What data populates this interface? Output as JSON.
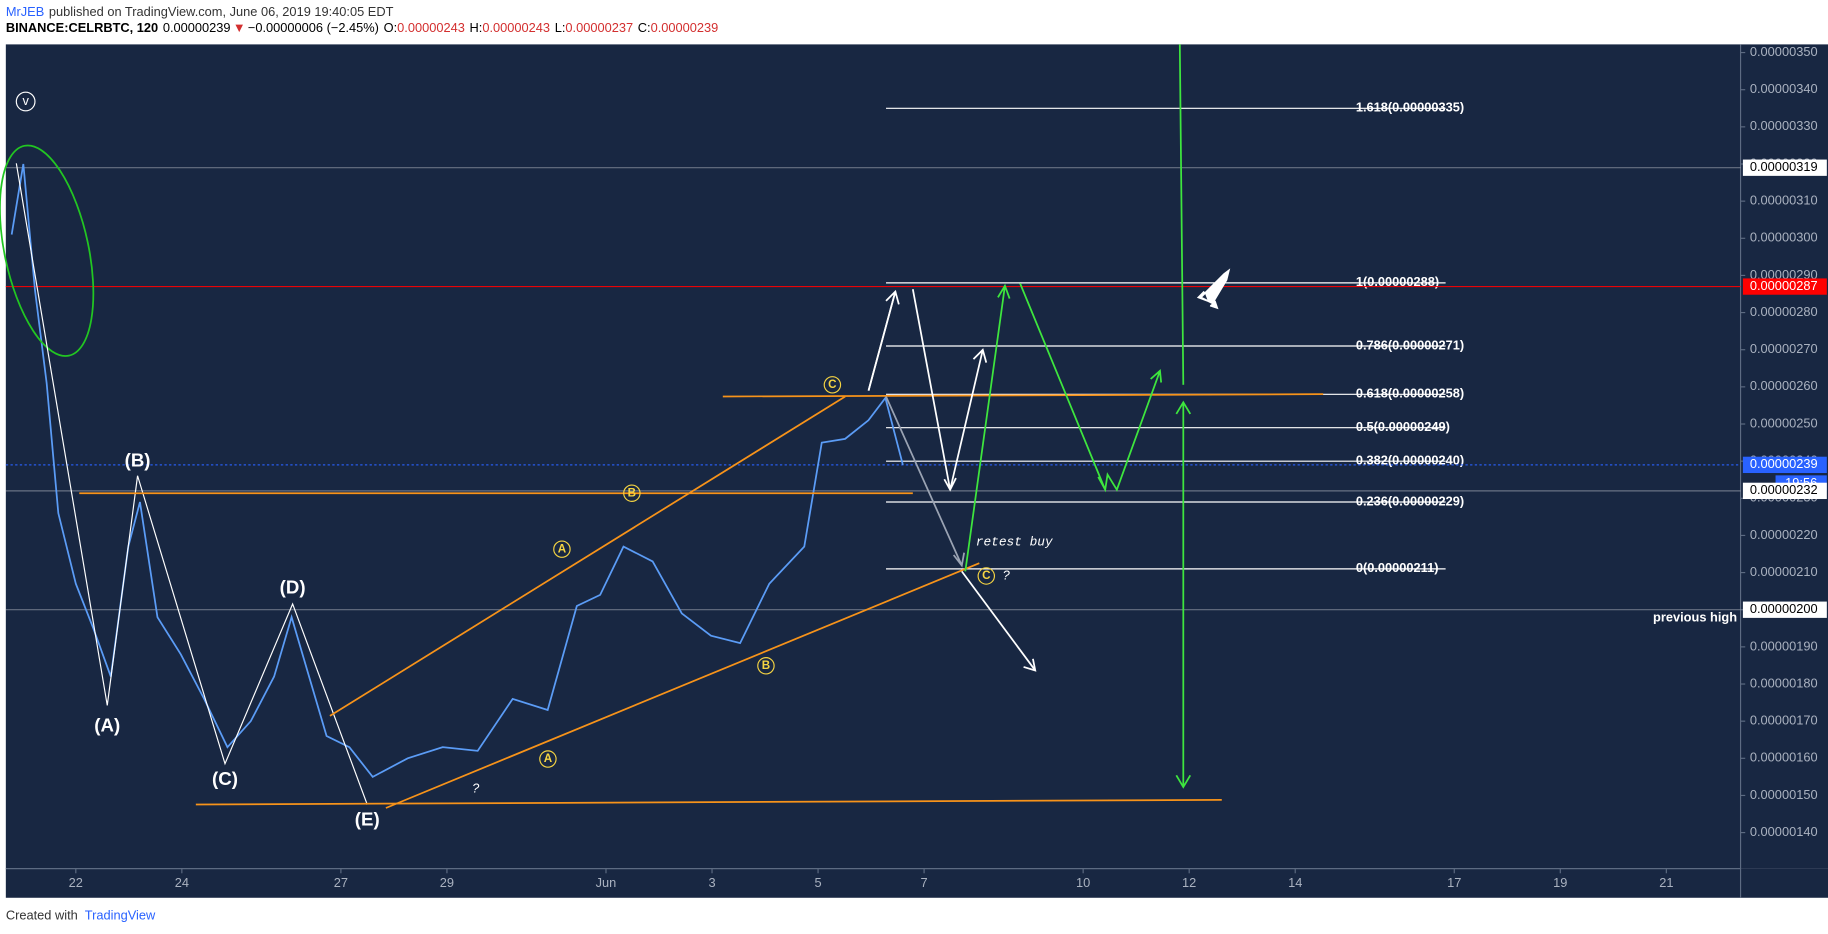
{
  "header": {
    "author": "MrJEB",
    "published": "published on TradingView.com, June 06, 2019 19:40:05 EDT",
    "symbol": "BINANCE:CELRBTC, 120",
    "last": "0.00000239",
    "arrow": "▼",
    "change": "−0.00000006 (−2.45%)",
    "o_label": "O:",
    "open": "0.00000243",
    "h_label": "H:",
    "high": "0.00000243",
    "l_label": "L:",
    "low": "0.00000237",
    "c_label": "C:",
    "close": "0.00000239"
  },
  "footer": {
    "created": "Created with",
    "brand": "TradingView"
  },
  "chart_data": {
    "type": "line",
    "x": [
      20.79,
      21.01,
      21.23,
      21.45,
      21.67,
      22,
      22.33,
      22.66,
      22.99,
      23.21,
      23.54,
      23.98,
      24.42,
      24.86,
      25.3,
      25.74,
      26.07,
      26.4,
      26.73,
      27.16,
      27.6,
      28.26,
      28.92,
      29.58,
      30.24,
      30.9,
      31.45,
      31.89,
      32.33,
      32.88,
      33.43,
      33.98,
      34.53,
      35.08,
      35.74,
      36.07,
      36.51,
      36.95,
      37.27,
      37.6
    ],
    "series": [
      {
        "color": "#5b9cf6",
        "values": [
          3.01e-06,
          3.2e-06,
          2.86e-06,
          2.61e-06,
          2.26e-06,
          2.07e-06,
          1.95e-06,
          1.82e-06,
          2.17e-06,
          2.29e-06,
          1.98e-06,
          1.88e-06,
          1.76e-06,
          1.63e-06,
          1.7e-06,
          1.82e-06,
          1.98e-06,
          1.82e-06,
          1.66e-06,
          1.63e-06,
          1.55e-06,
          1.6e-06,
          1.63e-06,
          1.62e-06,
          1.76e-06,
          1.73e-06,
          2.01e-06,
          2.04e-06,
          2.17e-06,
          2.13e-06,
          1.99e-06,
          1.93e-06,
          1.91e-06,
          2.07e-06,
          2.17e-06,
          2.45e-06,
          2.46e-06,
          2.51e-06,
          2.57e-06,
          2.39e-06
        ]
      }
    ],
    "xlim": [
      20.68,
      53.4
    ],
    "xticks": [
      {
        "value": 22,
        "label": "22"
      },
      {
        "value": 24,
        "label": "24"
      },
      {
        "value": 27,
        "label": "27"
      },
      {
        "value": 29,
        "label": "29"
      },
      {
        "value": 32,
        "label": "Jun"
      },
      {
        "value": 34,
        "label": "3"
      },
      {
        "value": 36,
        "label": "5"
      },
      {
        "value": 38,
        "label": "7"
      },
      {
        "value": 41,
        "label": "10"
      },
      {
        "value": 43,
        "label": "12"
      },
      {
        "value": 45,
        "label": "14"
      },
      {
        "value": 48,
        "label": "17"
      },
      {
        "value": 50,
        "label": "19"
      },
      {
        "value": 52,
        "label": "21"
      }
    ],
    "ylim": [
      1.303e-06,
      3.522e-06
    ],
    "yticks": [
      {
        "value": 1.4e-06,
        "label": "0.00000140"
      },
      {
        "value": 1.5e-06,
        "label": "0.00000150"
      },
      {
        "value": 1.6e-06,
        "label": "0.00000160"
      },
      {
        "value": 1.7e-06,
        "label": "0.00000170"
      },
      {
        "value": 1.8e-06,
        "label": "0.00000180"
      },
      {
        "value": 1.9e-06,
        "label": "0.00000190"
      },
      {
        "value": 2e-06,
        "label": "0.00000200"
      },
      {
        "value": 2.1e-06,
        "label": "0.00000210"
      },
      {
        "value": 2.2e-06,
        "label": "0.00000220"
      },
      {
        "value": 2.3e-06,
        "label": "0.00000230"
      },
      {
        "value": 2.4e-06,
        "label": "0.00000240"
      },
      {
        "value": 2.5e-06,
        "label": "0.00000250"
      },
      {
        "value": 2.6e-06,
        "label": "0.00000260"
      },
      {
        "value": 2.7e-06,
        "label": "0.00000270"
      },
      {
        "value": 2.8e-06,
        "label": "0.00000280"
      },
      {
        "value": 2.9e-06,
        "label": "0.00000290"
      },
      {
        "value": 3e-06,
        "label": "0.00000300"
      },
      {
        "value": 3.1e-06,
        "label": "0.00000310"
      },
      {
        "value": 3.2e-06,
        "label": "0.00000320"
      },
      {
        "value": 3.3e-06,
        "label": "0.00000330"
      },
      {
        "value": 3.4e-06,
        "label": "0.00000340"
      },
      {
        "value": 3.5e-06,
        "label": "0.00000350"
      }
    ],
    "price_labels": [
      {
        "value": 3.19e-06,
        "label": "0.00000319",
        "color": "#ffffff"
      },
      {
        "value": 2.87e-06,
        "label": "0.00000287",
        "color": "#ff0000"
      },
      {
        "value": 2.39e-06,
        "label": "0.00000239",
        "color": "#2962ff"
      },
      {
        "value": 2.32e-06,
        "label": "0.00000232",
        "color": "#ffffff"
      },
      {
        "value": 2e-06,
        "label": "0.00000200",
        "color": "#ffffff"
      }
    ],
    "countdown": "19:56",
    "fib_levels": [
      {
        "value": 3.35e-06,
        "label": "1.618(0.00000335)"
      },
      {
        "value": 2.88e-06,
        "label": "1(0.00000288)"
      },
      {
        "value": 2.71e-06,
        "label": "0.786(0.00000271)"
      },
      {
        "value": 2.58e-06,
        "label": "0.618(0.00000258)"
      },
      {
        "value": 2.49e-06,
        "label": "0.5(0.00000249)"
      },
      {
        "value": 2.4e-06,
        "label": "0.382(0.00000240)"
      },
      {
        "value": 2.29e-06,
        "label": "0.236(0.00000229)"
      },
      {
        "value": 2.11e-06,
        "label": "0(0.00000211)"
      }
    ]
  },
  "annotations": {
    "wave_a": "(A)",
    "wave_b": "(B)",
    "wave_c": "(C)",
    "wave_d": "(D)",
    "wave_e": "(E)",
    "v": "v",
    "a1": "A",
    "b1": "B",
    "c1": "C",
    "a2": "A",
    "b2": "B",
    "c2": "C",
    "q1": "?",
    "q2": "?",
    "retest": "retest buy",
    "previous_high": "previous high"
  }
}
